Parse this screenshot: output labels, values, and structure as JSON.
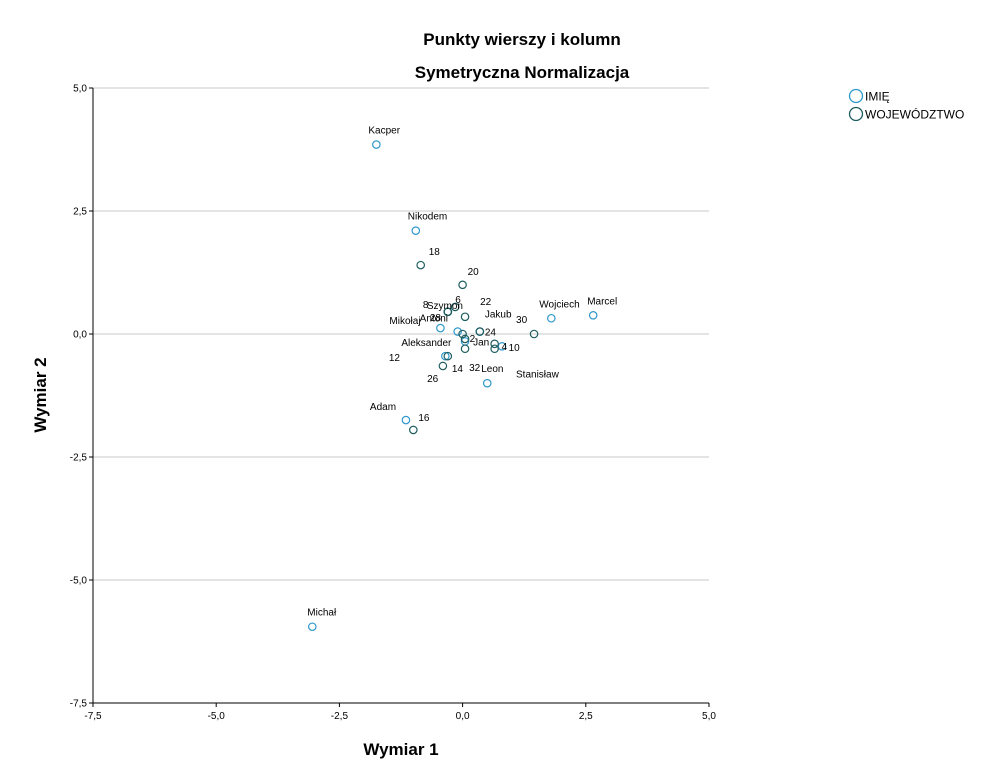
{
  "chart_data": {
    "type": "scatter",
    "title": "Punkty wierszy i kolumn",
    "subtitle": "Symetryczna Normalizacja",
    "xlabel": "Wymiar 1",
    "ylabel": "Wymiar 2",
    "xlim": [
      -7.5,
      5.0
    ],
    "ylim": [
      -7.5,
      5.0
    ],
    "xticks": [
      "-7,5",
      "-5,0",
      "-2,5",
      "0,0",
      "2,5",
      "5,0"
    ],
    "yticks": [
      "-7,5",
      "-5,0",
      "-2,5",
      "0,0",
      "2,5",
      "5,0"
    ],
    "grid": "horizontal",
    "legend": "top-right",
    "colors": {
      "IMIĘ": "#2f98cc",
      "WOJEWÓDZTWO": "#1e5c5e"
    },
    "series": [
      {
        "name": "IMIĘ",
        "points": [
          {
            "label": "Kacper",
            "x": -1.75,
            "y": 3.85
          },
          {
            "label": "Nikodem",
            "x": -0.95,
            "y": 2.1
          },
          {
            "label": "Szymon",
            "x": -0.3,
            "y": 0.45
          },
          {
            "label": "Antoni",
            "x": -0.1,
            "y": 0.05
          },
          {
            "label": "Mikołaj",
            "x": -0.45,
            "y": 0.12
          },
          {
            "label": "Aleksander",
            "x": -0.35,
            "y": -0.45
          },
          {
            "label": "Jan",
            "x": 0.05,
            "y": -0.15
          },
          {
            "label": "Jakub",
            "x": 0.35,
            "y": 0.05
          },
          {
            "label": "Wojciech",
            "x": 1.8,
            "y": 0.32
          },
          {
            "label": "Marcel",
            "x": 2.65,
            "y": 0.38
          },
          {
            "label": "Stanisław",
            "x": 0.8,
            "y": -0.25
          },
          {
            "label": "Leon",
            "x": 0.5,
            "y": -1.0
          },
          {
            "label": "Adam",
            "x": -1.15,
            "y": -1.75
          },
          {
            "label": "Michał",
            "x": -3.05,
            "y": -5.95
          }
        ]
      },
      {
        "name": "WOJEWÓDZTWO",
        "points": [
          {
            "label": "18",
            "x": -0.85,
            "y": 1.4
          },
          {
            "label": "20",
            "x": 0.0,
            "y": 1.0
          },
          {
            "label": "28",
            "x": -0.3,
            "y": 0.45
          },
          {
            "label": "6",
            "x": -0.15,
            "y": 0.55
          },
          {
            "label": "8",
            "x": -0.3,
            "y": 0.45
          },
          {
            "label": "22",
            "x": 0.05,
            "y": 0.35
          },
          {
            "label": "2",
            "x": 0.0,
            "y": 0.0
          },
          {
            "label": "24",
            "x": 0.35,
            "y": 0.05
          },
          {
            "label": "4",
            "x": 0.65,
            "y": -0.2
          },
          {
            "label": "30",
            "x": 1.45,
            "y": 0.0
          },
          {
            "label": "10",
            "x": 0.65,
            "y": -0.3
          },
          {
            "label": "12",
            "x": -0.3,
            "y": -0.45
          },
          {
            "label": "14",
            "x": -0.4,
            "y": -0.65
          },
          {
            "label": "26",
            "x": 0.05,
            "y": -0.3
          },
          {
            "label": "32",
            "x": 0.05,
            "y": -0.1
          },
          {
            "label": "16",
            "x": -1.0,
            "y": -1.95
          }
        ]
      }
    ]
  }
}
